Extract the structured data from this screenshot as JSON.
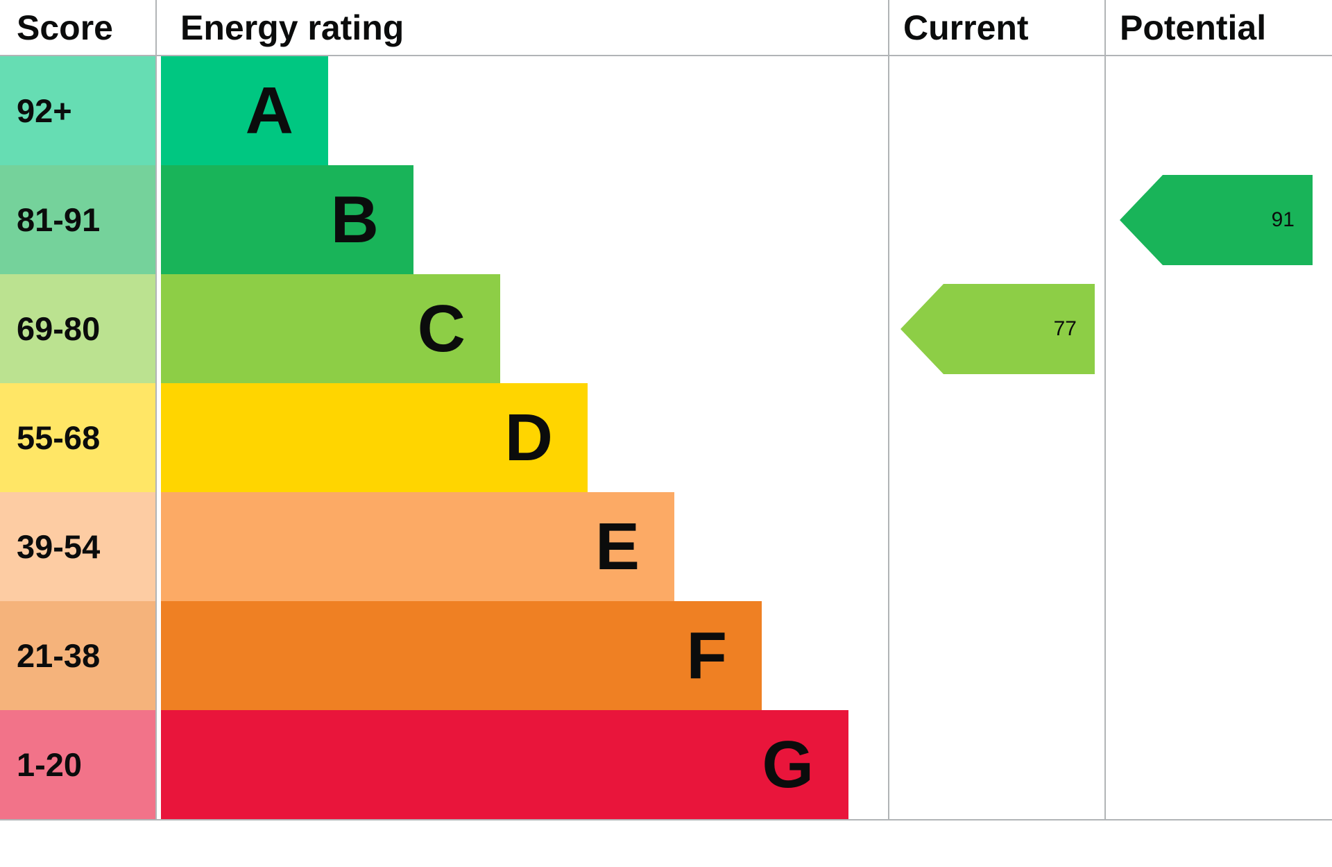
{
  "header": {
    "score": "Score",
    "energy_rating": "Energy rating",
    "current": "Current",
    "potential": "Potential"
  },
  "chart_data": {
    "type": "bar",
    "subtype": "epc-energy-rating",
    "title": "Energy rating",
    "bands": [
      {
        "score": "92+",
        "letter": "A",
        "color": "#00c781",
        "width_frac": 0.229
      },
      {
        "score": "81-91",
        "letter": "B",
        "color": "#19b459",
        "width_frac": 0.346
      },
      {
        "score": "69-80",
        "letter": "C",
        "color": "#8dce46",
        "width_frac": 0.464
      },
      {
        "score": "55-68",
        "letter": "D",
        "color": "#ffd500",
        "width_frac": 0.584
      },
      {
        "score": "39-54",
        "letter": "E",
        "color": "#fcaa65",
        "width_frac": 0.703
      },
      {
        "score": "21-38",
        "letter": "F",
        "color": "#ef8023",
        "width_frac": 0.822
      },
      {
        "score": "1-20",
        "letter": "G",
        "color": "#e9153b",
        "width_frac": 0.941
      }
    ],
    "current": {
      "value": 77,
      "band": "C",
      "color": "#8dce46"
    },
    "potential": {
      "value": 91,
      "band": "B",
      "color": "#19b459"
    }
  }
}
